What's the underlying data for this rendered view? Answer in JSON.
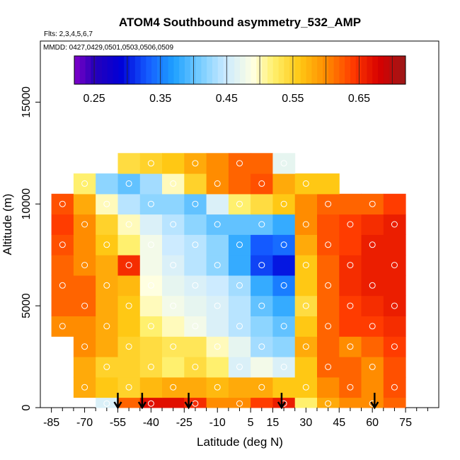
{
  "chart_data": {
    "type": "heatmap",
    "title": "ATOM4 Southbound asymmetry_532_AMP",
    "subtitle_flights": "Flts: 2,3,4,5,6,7",
    "subtitle_dates": "MMDD: 0427,0429,0501,0503,0506,0509",
    "xlabel": "Latitude (deg N)",
    "ylabel": "Altitude (m)",
    "xlim": [
      -90,
      90
    ],
    "ylim": [
      0,
      18000
    ],
    "x_ticks": [
      -85,
      -70,
      -55,
      -40,
      -25,
      -10,
      5,
      15,
      30,
      45,
      60,
      75
    ],
    "y_ticks": [
      0,
      5000,
      10000,
      15000
    ],
    "colorbar": {
      "min": 0.22,
      "max": 0.72,
      "tick_values": [
        0.25,
        0.35,
        0.45,
        0.55,
        0.65
      ],
      "tick_labels": [
        "0.25",
        "0.35",
        "0.45",
        "0.55",
        "0.65"
      ]
    },
    "profile_arrows_lat": [
      -55,
      -44,
      -23,
      19,
      61
    ],
    "grid_lat": [
      -80,
      -70,
      -60,
      -50,
      -40,
      -30,
      -20,
      -10,
      0,
      10,
      20,
      30,
      40,
      50,
      60,
      70
    ],
    "grid_alt": [
      0,
      1000,
      2000,
      3000,
      4000,
      5000,
      6000,
      7000,
      8000,
      9000,
      10000,
      11000,
      12000
    ],
    "values": [
      [
        null,
        null,
        0.46,
        0.62,
        0.67,
        0.67,
        0.65,
        0.6,
        0.6,
        0.64,
        0.66,
        0.52,
        0.58,
        0.6,
        0.6,
        0.62
      ],
      [
        null,
        0.58,
        0.56,
        0.55,
        0.57,
        0.58,
        0.58,
        0.57,
        0.58,
        0.58,
        0.56,
        0.56,
        0.6,
        0.62,
        0.6,
        0.63
      ],
      [
        null,
        0.58,
        0.55,
        0.55,
        0.54,
        0.52,
        0.54,
        0.52,
        0.46,
        0.48,
        0.46,
        0.56,
        0.62,
        0.62,
        0.6,
        0.63
      ],
      [
        null,
        0.6,
        0.58,
        0.55,
        0.54,
        0.53,
        0.53,
        0.5,
        0.47,
        0.43,
        0.42,
        0.58,
        0.62,
        0.6,
        0.62,
        0.64
      ],
      [
        0.6,
        0.6,
        0.58,
        0.56,
        0.52,
        0.5,
        0.48,
        0.46,
        0.44,
        0.42,
        0.4,
        0.56,
        0.62,
        0.64,
        0.64,
        0.65
      ],
      [
        0.62,
        0.62,
        0.58,
        0.56,
        0.5,
        0.48,
        0.47,
        0.46,
        0.44,
        0.4,
        0.38,
        0.54,
        0.62,
        0.64,
        0.65,
        0.66
      ],
      [
        0.62,
        0.62,
        0.58,
        0.57,
        0.49,
        0.47,
        0.46,
        0.45,
        0.43,
        0.38,
        0.35,
        0.56,
        0.62,
        0.65,
        0.66,
        0.66
      ],
      [
        0.62,
        0.6,
        0.58,
        0.65,
        0.48,
        0.46,
        0.44,
        0.42,
        0.38,
        0.32,
        0.3,
        0.56,
        0.62,
        0.65,
        0.66,
        0.66
      ],
      [
        0.63,
        0.6,
        0.56,
        0.52,
        0.48,
        0.45,
        0.44,
        0.42,
        0.38,
        0.33,
        0.34,
        0.58,
        0.63,
        0.64,
        0.66,
        0.66
      ],
      [
        0.64,
        0.6,
        0.55,
        0.5,
        0.46,
        0.44,
        0.42,
        0.4,
        0.4,
        0.4,
        0.38,
        0.6,
        0.63,
        0.64,
        0.65,
        0.66
      ],
      [
        0.63,
        0.58,
        0.5,
        0.44,
        0.42,
        0.42,
        0.4,
        0.46,
        0.52,
        0.54,
        0.56,
        0.6,
        0.62,
        0.62,
        0.62,
        0.64
      ],
      [
        null,
        0.52,
        0.42,
        0.4,
        0.43,
        0.5,
        0.55,
        0.6,
        0.62,
        0.63,
        0.58,
        0.56,
        0.56,
        null,
        null,
        null
      ],
      [
        null,
        null,
        null,
        0.54,
        0.55,
        0.56,
        0.58,
        0.6,
        0.62,
        0.62,
        0.47,
        null,
        null,
        null,
        null,
        null
      ]
    ]
  }
}
